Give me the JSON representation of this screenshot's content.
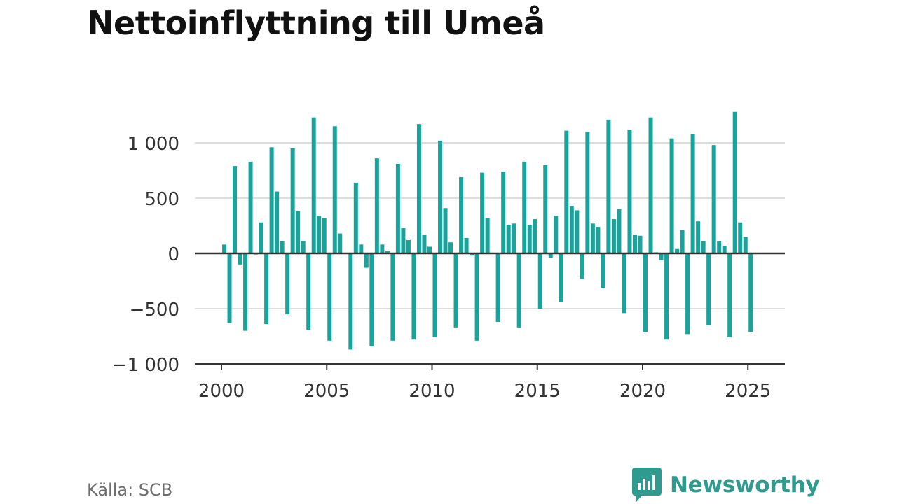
{
  "title": "Nettoinflyttning till Umeå",
  "source": "Källa: SCB",
  "brand": {
    "name": "Newsworthy",
    "icon": "chat-bar-chart-icon",
    "color": "#2f9a8e"
  },
  "colors": {
    "bar": "#1aa39b",
    "grid": "#dddddd",
    "axis": "#333333",
    "tick_text": "#333333"
  },
  "chart_data": {
    "type": "bar",
    "title": "Nettoinflyttning till Umeå",
    "xlabel": "",
    "ylabel": "",
    "x_ticks": [
      "2000",
      "2005",
      "2010",
      "2015",
      "2020",
      "2025"
    ],
    "y_ticks": [
      "1 000",
      "500",
      "0",
      "−500",
      "−1 000"
    ],
    "ylim": [
      -1000,
      1500
    ],
    "grid": true,
    "legend": "none",
    "series": [
      {
        "values": [
          80,
          -630,
          790,
          -100,
          -700,
          830,
          -10,
          280,
          -640,
          960,
          560,
          110,
          -550,
          950,
          380,
          110,
          -690,
          1230,
          340,
          320,
          -790,
          1150,
          180,
          0,
          -870,
          640,
          80,
          -130,
          -840,
          860,
          80,
          20,
          -790,
          810,
          230,
          120,
          -780,
          1170,
          170,
          60,
          -760,
          1020,
          410,
          100,
          -670,
          690,
          140,
          -20,
          -790,
          730,
          320,
          0,
          -620,
          740,
          260,
          270,
          -670,
          830,
          260,
          310,
          -500,
          800,
          -40,
          340,
          -440,
          1110,
          430,
          390,
          -230,
          1100,
          270,
          240,
          -310,
          1210,
          310,
          400,
          -540,
          1120,
          170,
          160,
          -710,
          1230,
          10,
          -60,
          -780,
          1040,
          40,
          210,
          -730,
          1080,
          290,
          110,
          -650,
          980,
          110,
          70,
          -760,
          1280,
          280,
          150,
          -710
        ]
      }
    ]
  }
}
